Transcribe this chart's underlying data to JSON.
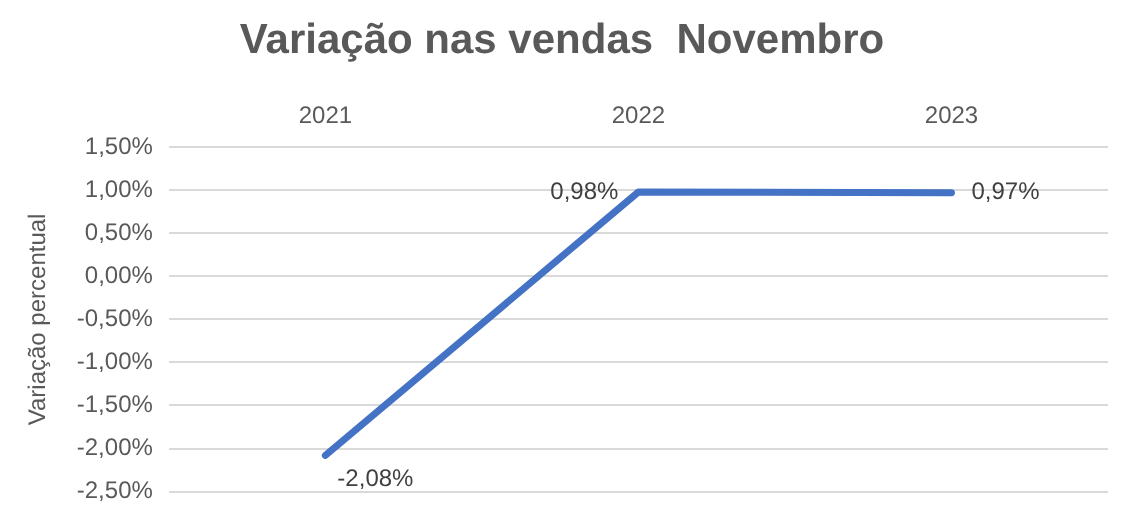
{
  "chart_data": {
    "type": "line",
    "title": "Variação nas vendas  Novembro",
    "ylabel": "Variação percentual",
    "categories": [
      "2021",
      "2022",
      "2023"
    ],
    "series": [
      {
        "color": "#4472c4",
        "values": [
          -2.08,
          0.98,
          0.97
        ],
        "value_labels": [
          "-2,08%",
          "0,98%",
          "0,97%"
        ]
      }
    ],
    "ylim": [
      -2.5,
      1.5
    ],
    "yticks": [
      {
        "value": -2.5,
        "label": "-2,50%"
      },
      {
        "value": -2,
        "label": "-2,00%"
      },
      {
        "value": -1.5,
        "label": "-1,50%"
      },
      {
        "value": -1,
        "label": "-1,00%"
      },
      {
        "value": -0.5,
        "label": "-0,50%"
      },
      {
        "value": 0,
        "label": "0,00%"
      },
      {
        "value": 0.5,
        "label": "0,50%"
      },
      {
        "value": 1,
        "label": "1,00%"
      },
      {
        "value": 1.5,
        "label": "1,50%"
      }
    ],
    "grid": "y",
    "legend": false,
    "marker": "none",
    "line_style": "solid"
  }
}
